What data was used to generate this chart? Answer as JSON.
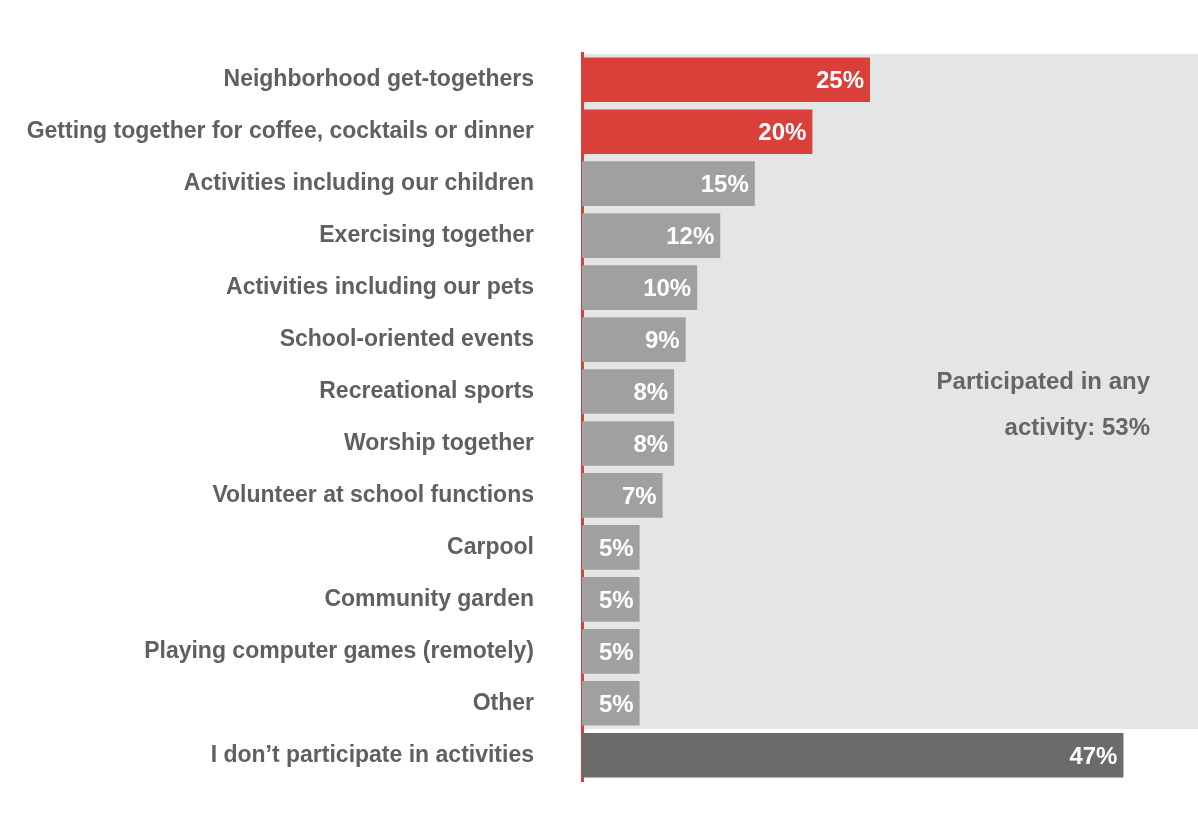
{
  "chart_data": {
    "type": "bar",
    "orientation": "horizontal",
    "categories": [
      "Neighborhood get-togethers",
      "Getting together for coffee, cocktails or dinner",
      "Activities including our children",
      "Exercising together",
      "Activities including our pets",
      "School-oriented events",
      "Recreational sports",
      "Worship together",
      "Volunteer at school functions",
      "Carpool",
      "Community garden",
      "Playing computer games (remotely)",
      "Other",
      "I don’t participate in activities"
    ],
    "values": [
      25,
      20,
      15,
      12,
      10,
      9,
      8,
      8,
      7,
      5,
      5,
      5,
      5,
      47
    ],
    "value_labels": [
      "25%",
      "20%",
      "15%",
      "12%",
      "10%",
      "9%",
      "8%",
      "8%",
      "7%",
      "5%",
      "5%",
      "5%",
      "5%",
      "47%"
    ],
    "colors": [
      "#d9403a",
      "#d9403a",
      "#a0a0a2",
      "#a0a0a2",
      "#a0a0a2",
      "#a0a0a2",
      "#a0a0a2",
      "#a0a0a2",
      "#a0a0a2",
      "#a0a0a2",
      "#a0a0a2",
      "#a0a0a2",
      "#a0a0a2",
      "#6b6b6b"
    ],
    "tick_labels": "y",
    "grid": false,
    "legend": false,
    "annotations": [
      "Participated in any activity: 53%"
    ]
  }
}
